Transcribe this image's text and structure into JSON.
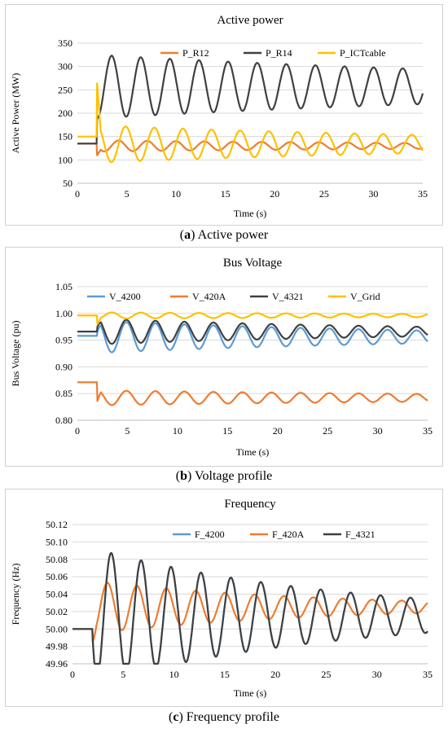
{
  "charts": [
    {
      "caption_letter": "a",
      "caption_text": "Active power",
      "chart_data": {
        "type": "line",
        "title": "Active power",
        "xlabel": "Time (s)",
        "ylabel": "Active Power (MW)",
        "xlim": [
          0,
          35
        ],
        "ylim": [
          50,
          350
        ],
        "xticks": [
          0,
          5,
          10,
          15,
          20,
          25,
          30,
          35
        ],
        "yticks": [
          50,
          100,
          150,
          200,
          250,
          300,
          350
        ],
        "ytick_decimals": 0,
        "grid": true,
        "legend": "top",
        "series": [
          {
            "name": "P_R12",
            "color": "#ED7D31",
            "model": {
              "pre": 135,
              "t0": 2.0,
              "base": 130,
              "amp": 12,
              "period": 2.9,
              "decay": 0.02,
              "phase": 3.1416,
              "spike": -20
            }
          },
          {
            "name": "P_R14",
            "color": "#404040",
            "model": {
              "pre": 135,
              "t0": 2.0,
              "base": 257,
              "amp": 68,
              "period": 2.95,
              "decay": 0.018,
              "phase": -1.5708,
              "spike": 0
            }
          },
          {
            "name": "P_ICTcable",
            "color": "#FFC000",
            "model": {
              "pre": 150,
              "t0": 2.0,
              "base": 134,
              "amp": 40,
              "period": 2.9,
              "decay": 0.022,
              "phase": 1.5708,
              "spike": 90
            }
          }
        ]
      }
    },
    {
      "caption_letter": "b",
      "caption_text": "Voltage profile",
      "chart_data": {
        "type": "line",
        "title": "Bus Voltage",
        "xlabel": "Time (s)",
        "ylabel": "Bus Voltage (pu)",
        "xlim": [
          0,
          35
        ],
        "ylim": [
          0.8,
          1.05
        ],
        "xticks": [
          0,
          5,
          10,
          15,
          20,
          25,
          30,
          35
        ],
        "yticks": [
          0.8,
          0.85,
          0.9,
          0.95,
          1.0,
          1.05
        ],
        "ytick_decimals": 2,
        "grid": true,
        "legend": "top",
        "series": [
          {
            "name": "V_4200",
            "color": "#5B9BD5",
            "model": {
              "pre": 0.958,
              "t0": 2.0,
              "base": 0.956,
              "amp": 0.03,
              "period": 2.9,
              "decay": 0.028,
              "phase": 1.5708,
              "spike": -0.02
            }
          },
          {
            "name": "V_420A",
            "color": "#ED7D31",
            "model": {
              "pre": 0.871,
              "t0": 2.0,
              "base": 0.842,
              "amp": 0.014,
              "period": 2.9,
              "decay": 0.02,
              "phase": 1.5708,
              "spike": -0.02
            }
          },
          {
            "name": "V_4321",
            "color": "#404040",
            "model": {
              "pre": 0.966,
              "t0": 2.0,
              "base": 0.966,
              "amp": 0.024,
              "period": 2.9,
              "decay": 0.03,
              "phase": 1.5708,
              "spike": -0.015
            }
          },
          {
            "name": "V_Grid",
            "color": "#FFC000",
            "model": {
              "pre": 0.996,
              "t0": 2.0,
              "base": 0.996,
              "amp": 0.006,
              "period": 2.9,
              "decay": 0.02,
              "phase": -1.5708,
              "spike": -0.01
            }
          }
        ]
      }
    },
    {
      "caption_letter": "c",
      "caption_text": "Frequency profile",
      "chart_data": {
        "type": "line",
        "title": "Frequency",
        "xlabel": "Time (s)",
        "ylabel": "Frequency (Hz)",
        "xlim": [
          0,
          35
        ],
        "ylim": [
          49.96,
          50.12
        ],
        "xticks": [
          0,
          5,
          10,
          15,
          20,
          25,
          30,
          35
        ],
        "yticks": [
          49.96,
          49.98,
          50.0,
          50.02,
          50.04,
          50.06,
          50.08,
          50.1,
          50.12
        ],
        "ytick_decimals": 2,
        "grid": true,
        "legend": "top",
        "series": [
          {
            "name": "F_420A",
            "color": "#ED7D31",
            "model": {
              "pre": 50.0,
              "t0": 2.0,
              "base": 50.025,
              "amp": 0.03,
              "period": 2.9,
              "decay": 0.045,
              "phase": -1.5708,
              "spike": -0.01
            }
          },
          {
            "name": "F_4200",
            "color": "#5B9BD5",
            "model": {
              "pre": 50.0,
              "t0": 2.0,
              "base": 50.015,
              "amp": 0.078,
              "period": 2.95,
              "decay": 0.042,
              "phase": -2.3,
              "spike": 0.03
            }
          },
          {
            "name": "F_4321",
            "color": "#404040",
            "model": {
              "pre": 50.0,
              "t0": 2.0,
              "base": 50.015,
              "amp": 0.078,
              "period": 2.95,
              "decay": 0.042,
              "phase": -2.3,
              "spike": 0.03
            }
          }
        ]
      }
    }
  ]
}
